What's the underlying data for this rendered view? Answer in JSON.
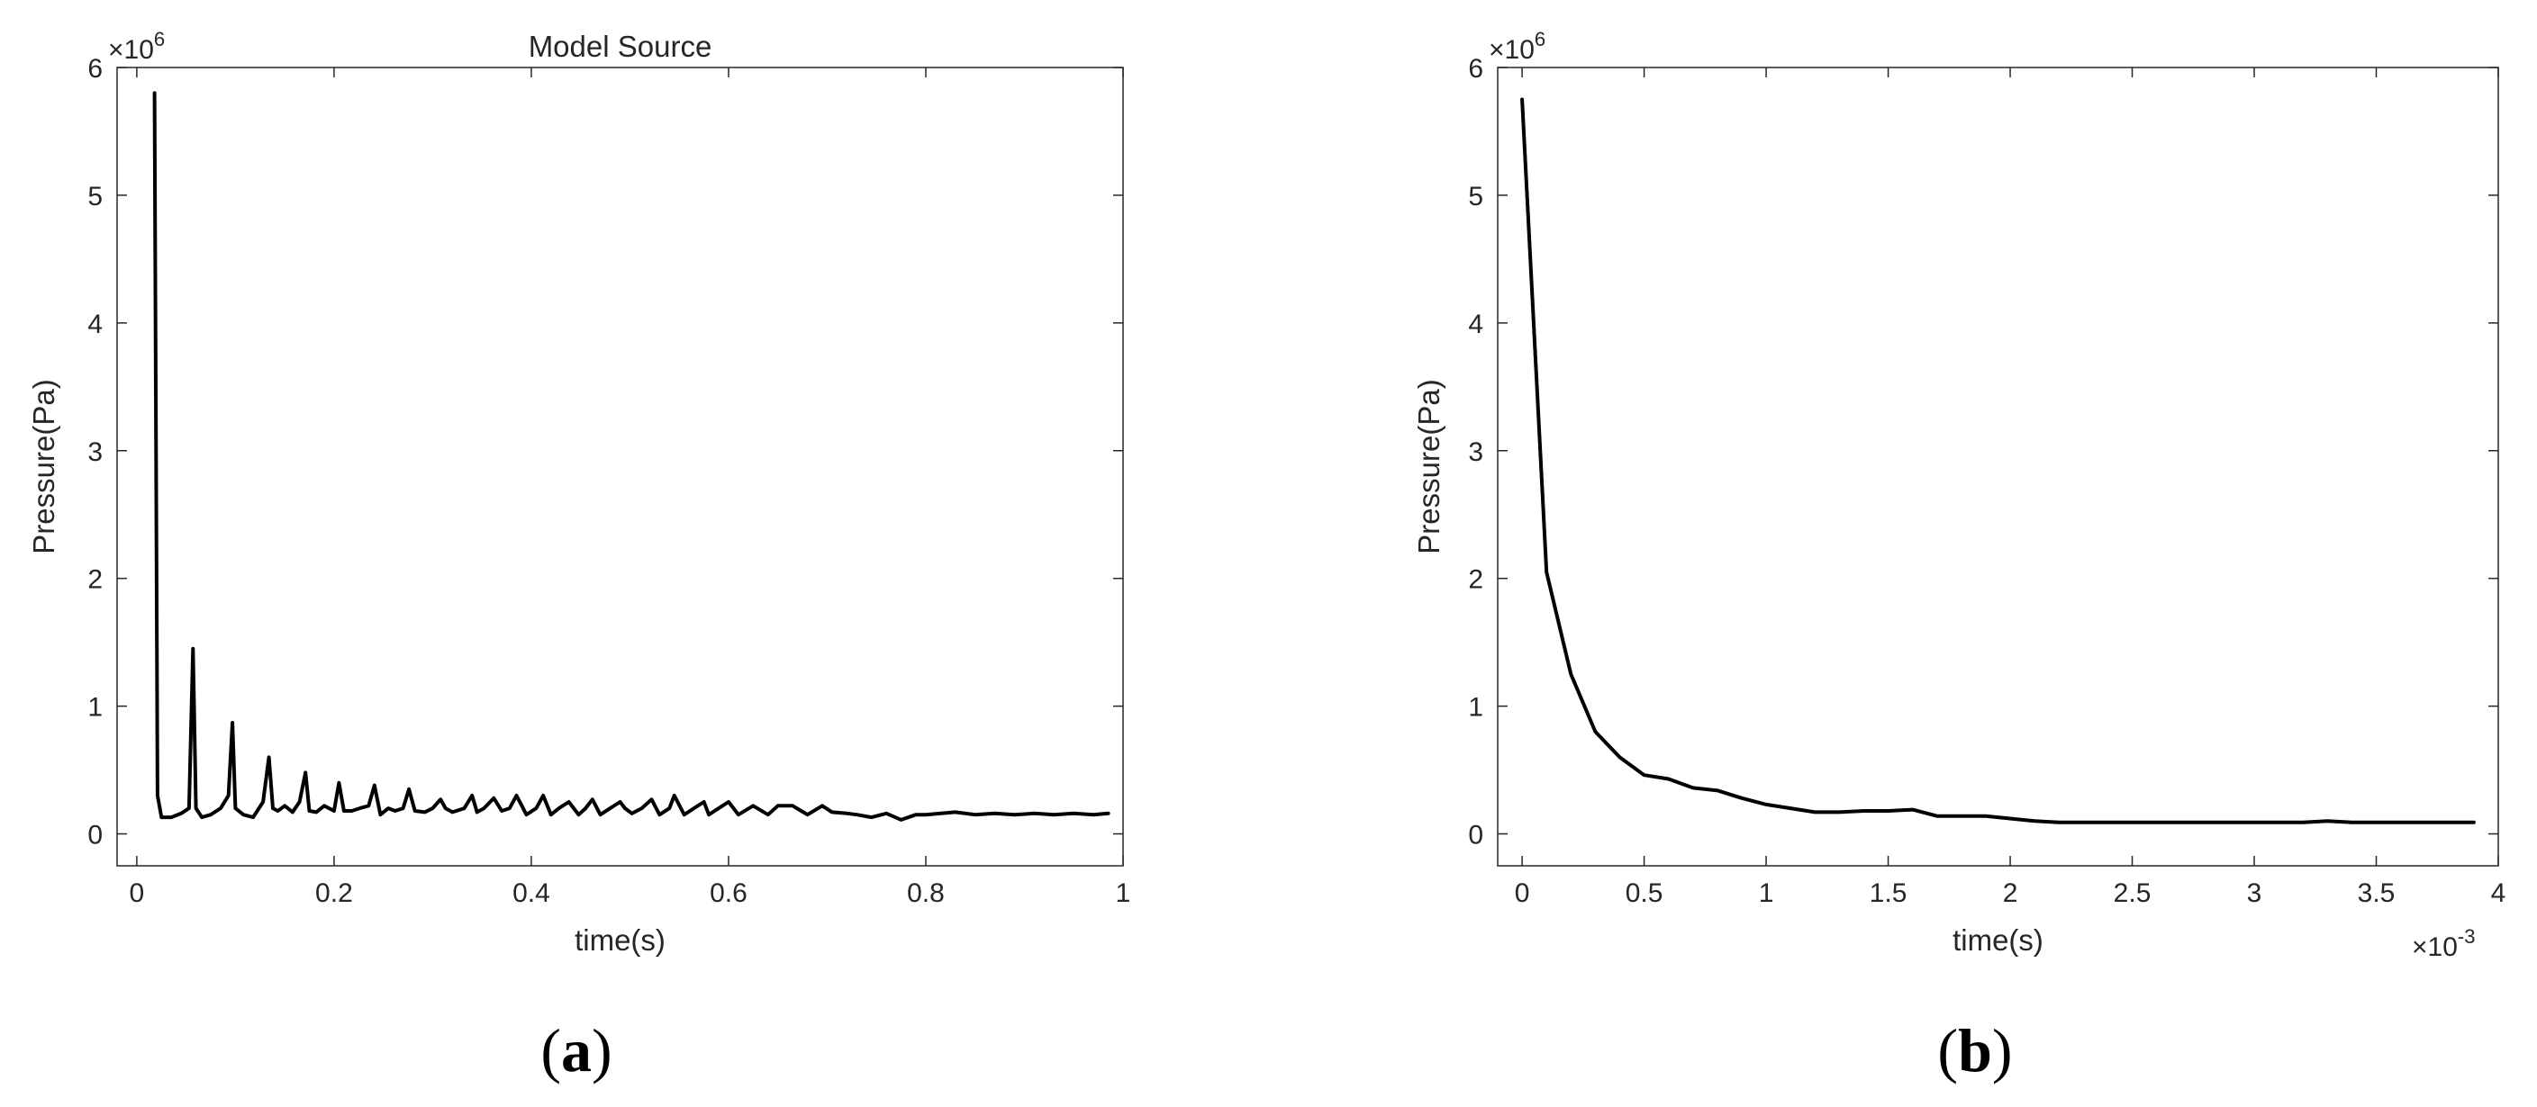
{
  "chart_data": [
    {
      "type": "line",
      "panel": "(a)",
      "panel_letter": "a",
      "title": "Model Source",
      "xlabel": "time(s)",
      "ylabel": "Pressure(Pa)",
      "x_multiplier": "",
      "y_multiplier": "×10^6",
      "xlim": [
        -0.02,
        1.0
      ],
      "ylim": [
        -0.25,
        6.0
      ],
      "xticks": [
        0,
        0.2,
        0.4,
        0.6,
        0.8,
        1
      ],
      "xtick_labels": [
        "0",
        "0.2",
        "0.4",
        "0.6",
        "0.8",
        "1"
      ],
      "yticks": [
        0,
        1,
        2,
        3,
        4,
        5,
        6
      ],
      "ytick_labels": [
        "0",
        "1",
        "2",
        "3",
        "4",
        "5",
        "6"
      ],
      "y_unit_scale": 1000000,
      "grid": false,
      "series": [
        {
          "x": [
            0.018,
            0.021,
            0.025,
            0.035,
            0.045,
            0.053,
            0.057,
            0.06,
            0.066,
            0.075,
            0.085,
            0.093,
            0.097,
            0.1,
            0.108,
            0.118,
            0.128,
            0.134,
            0.138,
            0.143,
            0.15,
            0.158,
            0.165,
            0.171,
            0.175,
            0.182,
            0.19,
            0.2,
            0.205,
            0.21,
            0.218,
            0.226,
            0.235,
            0.241,
            0.247,
            0.255,
            0.262,
            0.27,
            0.276,
            0.282,
            0.292,
            0.3,
            0.308,
            0.313,
            0.32,
            0.332,
            0.34,
            0.345,
            0.352,
            0.362,
            0.37,
            0.378,
            0.385,
            0.395,
            0.405,
            0.412,
            0.42,
            0.428,
            0.438,
            0.448,
            0.455,
            0.462,
            0.47,
            0.48,
            0.49,
            0.495,
            0.502,
            0.512,
            0.522,
            0.53,
            0.54,
            0.545,
            0.555,
            0.565,
            0.575,
            0.58,
            0.59,
            0.6,
            0.61,
            0.625,
            0.64,
            0.65,
            0.665,
            0.68,
            0.695,
            0.705,
            0.72,
            0.73,
            0.745,
            0.76,
            0.775,
            0.79,
            0.8,
            0.815,
            0.83,
            0.85,
            0.87,
            0.89,
            0.91,
            0.93,
            0.95,
            0.97,
            0.985
          ],
          "y": [
            5.8,
            0.3,
            0.13,
            0.13,
            0.16,
            0.2,
            1.45,
            0.2,
            0.13,
            0.15,
            0.2,
            0.3,
            0.87,
            0.2,
            0.15,
            0.13,
            0.25,
            0.6,
            0.2,
            0.18,
            0.22,
            0.17,
            0.25,
            0.48,
            0.18,
            0.17,
            0.22,
            0.18,
            0.4,
            0.18,
            0.18,
            0.2,
            0.22,
            0.38,
            0.15,
            0.2,
            0.18,
            0.2,
            0.35,
            0.18,
            0.17,
            0.2,
            0.27,
            0.2,
            0.17,
            0.2,
            0.3,
            0.17,
            0.2,
            0.28,
            0.18,
            0.2,
            0.3,
            0.15,
            0.2,
            0.3,
            0.15,
            0.2,
            0.25,
            0.15,
            0.2,
            0.27,
            0.15,
            0.2,
            0.25,
            0.2,
            0.16,
            0.2,
            0.27,
            0.15,
            0.2,
            0.3,
            0.15,
            0.2,
            0.25,
            0.15,
            0.2,
            0.25,
            0.15,
            0.22,
            0.15,
            0.22,
            0.22,
            0.15,
            0.22,
            0.17,
            0.16,
            0.15,
            0.13,
            0.16,
            0.11,
            0.15,
            0.15,
            0.16,
            0.17,
            0.15,
            0.16,
            0.15,
            0.16,
            0.15,
            0.16,
            0.15,
            0.16
          ]
        }
      ]
    },
    {
      "type": "line",
      "panel": "(b)",
      "panel_letter": "b",
      "title": "",
      "xlabel": "time(s)",
      "ylabel": "Pressure(Pa)",
      "x_multiplier": "×10^-3",
      "y_multiplier": "×10^6",
      "xlim": [
        -0.1,
        4.0
      ],
      "ylim": [
        -0.25,
        6.0
      ],
      "xticks": [
        0,
        0.5,
        1,
        1.5,
        2,
        2.5,
        3,
        3.5,
        4
      ],
      "xtick_labels": [
        "0",
        "0.5",
        "1",
        "1.5",
        "2",
        "2.5",
        "3",
        "3.5",
        "4"
      ],
      "yticks": [
        0,
        1,
        2,
        3,
        4,
        5,
        6
      ],
      "ytick_labels": [
        "0",
        "1",
        "2",
        "3",
        "4",
        "5",
        "6"
      ],
      "y_unit_scale": 1000000,
      "x_unit_scale": 0.001,
      "grid": false,
      "series": [
        {
          "x": [
            0,
            0.1,
            0.2,
            0.3,
            0.4,
            0.5,
            0.6,
            0.7,
            0.8,
            0.9,
            1.0,
            1.1,
            1.2,
            1.3,
            1.4,
            1.5,
            1.6,
            1.7,
            1.8,
            1.9,
            2.0,
            2.1,
            2.2,
            2.3,
            2.4,
            2.5,
            2.6,
            2.7,
            2.8,
            2.9,
            3.0,
            3.1,
            3.2,
            3.3,
            3.4,
            3.5,
            3.6,
            3.7,
            3.8,
            3.9
          ],
          "y": [
            5.75,
            2.05,
            1.25,
            0.8,
            0.6,
            0.46,
            0.43,
            0.36,
            0.34,
            0.28,
            0.23,
            0.2,
            0.17,
            0.17,
            0.18,
            0.18,
            0.19,
            0.14,
            0.14,
            0.14,
            0.12,
            0.1,
            0.09,
            0.09,
            0.09,
            0.09,
            0.09,
            0.09,
            0.09,
            0.09,
            0.09,
            0.09,
            0.09,
            0.1,
            0.09,
            0.09,
            0.09,
            0.09,
            0.09,
            0.09
          ]
        }
      ]
    }
  ]
}
